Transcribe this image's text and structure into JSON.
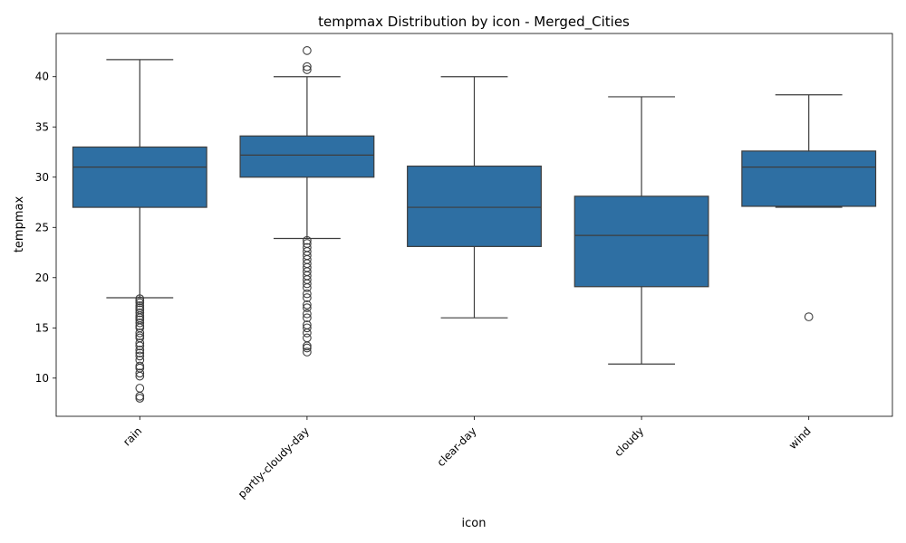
{
  "chart_data": {
    "type": "box",
    "title": "tempmax Distribution by icon - Merged_Cities",
    "xlabel": "icon",
    "ylabel": "tempmax",
    "ylim": [
      6.2,
      44.3
    ],
    "yticks": [
      10,
      15,
      20,
      25,
      30,
      35,
      40
    ],
    "box_color": "#2e6fa3",
    "line_color": "#3d3d3d",
    "grid": false,
    "categories": [
      "rain",
      "partly-cloudy-day",
      "clear-day",
      "cloudy",
      "wind"
    ],
    "boxes": [
      {
        "category": "rain",
        "whisker_low": 18.0,
        "q1": 27.0,
        "median": 31.0,
        "q3": 33.0,
        "whisker_high": 41.7,
        "outliers": [
          8.0,
          8.2,
          9.0,
          10.2,
          10.5,
          11.0,
          11.2,
          11.8,
          12.2,
          12.5,
          12.8,
          13.2,
          13.5,
          14.0,
          14.2,
          14.5,
          15.0,
          15.2,
          15.5,
          15.8,
          16.0,
          16.2,
          16.5,
          16.8,
          17.0,
          17.2,
          17.5,
          17.7,
          17.9
        ]
      },
      {
        "category": "partly-cloudy-day",
        "whisker_low": 23.9,
        "q1": 30.0,
        "median": 32.2,
        "q3": 34.1,
        "whisker_high": 40.0,
        "outliers": [
          12.6,
          13.0,
          13.2,
          14.0,
          14.5,
          15.0,
          15.3,
          16.0,
          16.4,
          17.0,
          17.3,
          18.0,
          18.4,
          19.0,
          19.4,
          19.8,
          20.2,
          20.6,
          21.0,
          21.4,
          21.8,
          22.2,
          22.6,
          23.0,
          23.4,
          23.7,
          40.7,
          41.0,
          42.6
        ]
      },
      {
        "category": "clear-day",
        "whisker_low": 16.0,
        "q1": 23.1,
        "median": 27.0,
        "q3": 31.1,
        "whisker_high": 40.0,
        "outliers": []
      },
      {
        "category": "cloudy",
        "whisker_low": 11.4,
        "q1": 19.1,
        "median": 24.2,
        "q3": 28.1,
        "whisker_high": 38.0,
        "outliers": []
      },
      {
        "category": "wind",
        "whisker_low": 27.0,
        "q1": 27.1,
        "median": 31.0,
        "q3": 32.6,
        "whisker_high": 38.2,
        "outliers": [
          16.1
        ]
      }
    ]
  }
}
